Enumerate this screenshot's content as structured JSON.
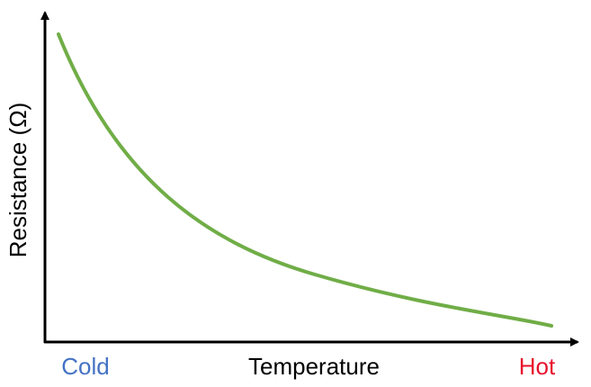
{
  "axes": {
    "y_label": "Resistance (Ω)",
    "x_label": "Temperature",
    "x_start": "Cold",
    "x_end": "Hot"
  }
}
